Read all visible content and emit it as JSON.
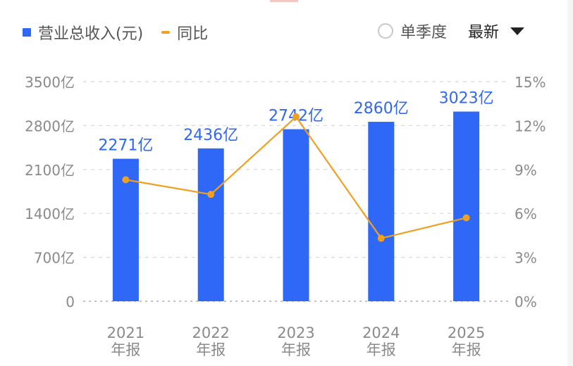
{
  "legend": {
    "revenue": "营业总收入(元)",
    "yoy": "同比"
  },
  "controls": {
    "single_season": "单季度",
    "latest": "最新"
  },
  "colors": {
    "bar": "#2f67f6",
    "line": "#f0a020",
    "grid": "#d8d8d8",
    "axis_text": "#8a8a8a",
    "bar_label": "#2f67f6"
  },
  "chart_data": {
    "type": "bar",
    "categories": [
      "2021",
      "2022",
      "2023",
      "2024",
      "2025"
    ],
    "category_sublabel": "年报",
    "series": [
      {
        "name": "营业总收入(元)",
        "type": "bar",
        "axis": "left",
        "values": [
          2271,
          2436,
          2742,
          2860,
          3023
        ],
        "labels": [
          "2271亿",
          "2436亿",
          "2742亿",
          "2860亿",
          "3023亿"
        ]
      },
      {
        "name": "同比",
        "type": "line",
        "axis": "right",
        "values": [
          8.3,
          7.3,
          12.6,
          4.3,
          5.7
        ]
      }
    ],
    "ylim_left": [
      0,
      3500
    ],
    "yticks_left": [
      "0",
      "700亿",
      "1400亿",
      "2100亿",
      "2800亿",
      "3500亿"
    ],
    "ylim_right": [
      0,
      15
    ],
    "yticks_right": [
      "0%",
      "3%",
      "6%",
      "9%",
      "12%",
      "15%"
    ],
    "grid": true
  }
}
